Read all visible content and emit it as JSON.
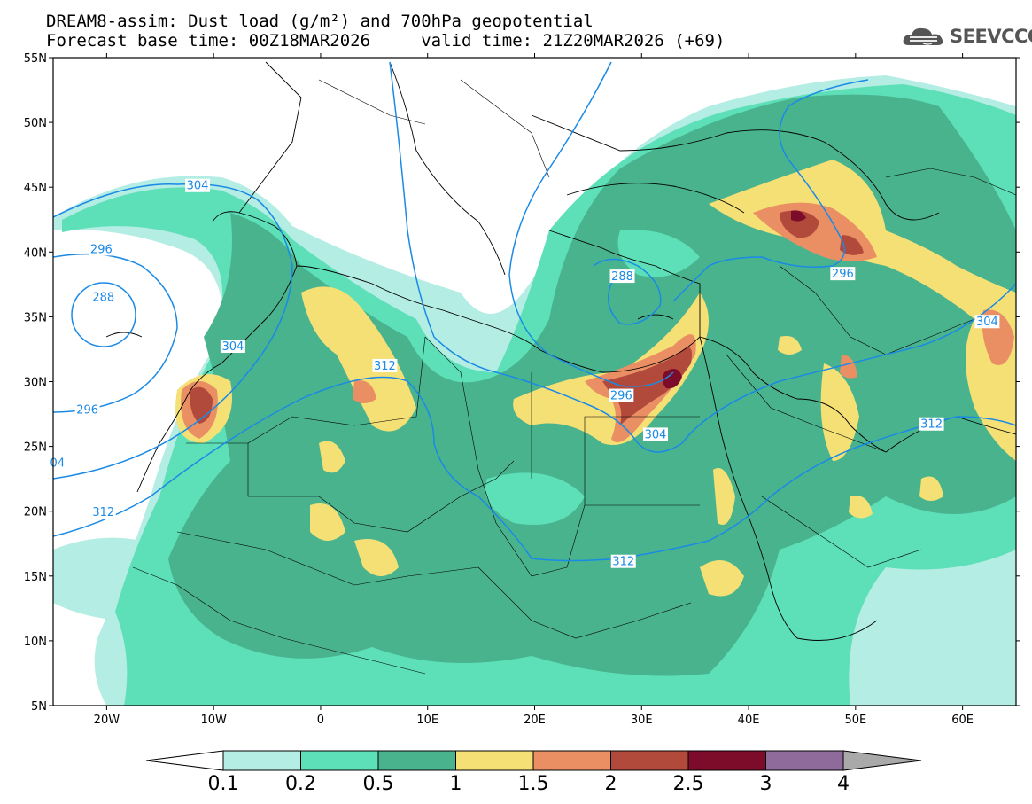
{
  "header": {
    "title_line1": "DREAM8-assim: Dust load (g/m²) and 700hPa geopotential",
    "title_line2": "Forecast base time: 00Z18MAR2026     valid time: 21Z20MAR2026 (+69)",
    "logo_text": "SEEVCCC"
  },
  "map": {
    "lon_range": [
      -25,
      65
    ],
    "lat_range": [
      5,
      55
    ],
    "lat_labels": [
      "55N",
      "50N",
      "45N",
      "40N",
      "35N",
      "30N",
      "25N",
      "20N",
      "15N",
      "10N",
      "5N"
    ],
    "lat_values": [
      55,
      50,
      45,
      40,
      35,
      30,
      25,
      20,
      15,
      10,
      5
    ],
    "lon_labels": [
      "20W",
      "10W",
      "0",
      "10E",
      "20E",
      "30E",
      "40E",
      "50E",
      "60E"
    ],
    "lon_values": [
      -20,
      -10,
      0,
      10,
      20,
      30,
      40,
      50,
      60
    ],
    "geopotential_contours": [
      {
        "label": "304",
        "lon": -11.5,
        "lat": 45.1
      },
      {
        "label": "296",
        "lon": -20.5,
        "lat": 40.2
      },
      {
        "label": "288",
        "lon": -20.3,
        "lat": 36.5
      },
      {
        "label": "304",
        "lon": -8.2,
        "lat": 32.7
      },
      {
        "label": "296",
        "lon": -21.8,
        "lat": 27.8
      },
      {
        "label": "04",
        "lon": -24.6,
        "lat": 23.7
      },
      {
        "label": "312",
        "lon": -20.3,
        "lat": 19.9
      },
      {
        "label": "312",
        "lon": 6.0,
        "lat": 31.2
      },
      {
        "label": "296",
        "lon": 28.1,
        "lat": 28.9
      },
      {
        "label": "304",
        "lon": 31.3,
        "lat": 25.9
      },
      {
        "label": "312",
        "lon": 28.3,
        "lat": 16.1
      },
      {
        "label": "288",
        "lon": 28.2,
        "lat": 38.1
      },
      {
        "label": "296",
        "lon": 48.8,
        "lat": 38.3
      },
      {
        "label": "304",
        "lon": 62.3,
        "lat": 34.6
      },
      {
        "label": "312",
        "lon": 57.1,
        "lat": 26.7
      }
    ]
  },
  "colorbar": {
    "labels": [
      "0.1",
      "0.2",
      "0.5",
      "1",
      "1.5",
      "2",
      "2.5",
      "3",
      "4"
    ],
    "colors": [
      "#b4ede3",
      "#5ddfb8",
      "#49b38d",
      "#f5e076",
      "#ea8f64",
      "#b24a3c",
      "#7d0b2a",
      "#8f6b9c"
    ],
    "under_color": "#ffffff",
    "over_color": "#a9a9a9"
  }
}
